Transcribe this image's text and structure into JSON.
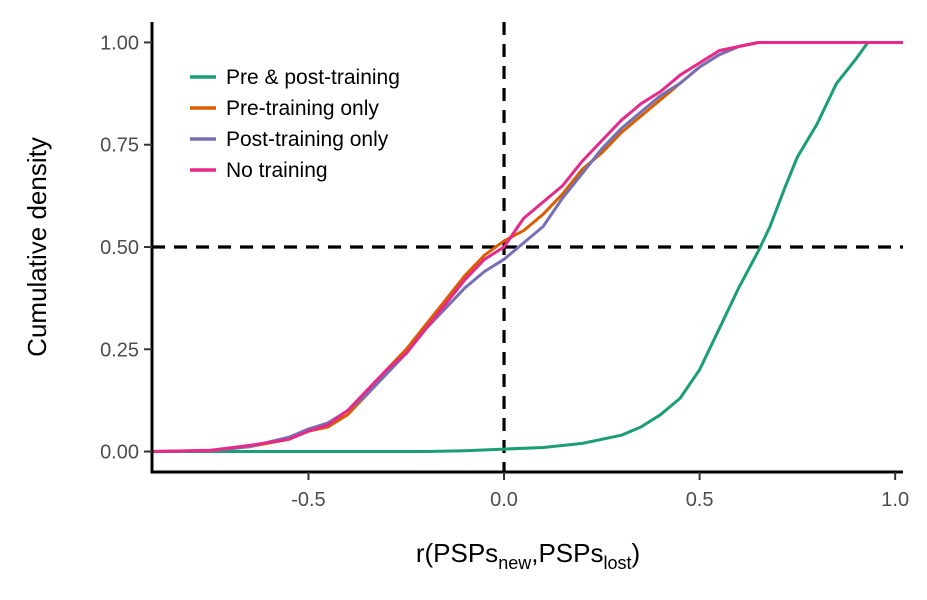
{
  "chart_data": {
    "type": "line",
    "title": "",
    "xlabel": {
      "main": "r(PSPs",
      "sub1": "new",
      "sep": ",PSPs",
      "sub2": "lost",
      "end": ")"
    },
    "ylabel": "Cumulative density",
    "xlim": [
      -0.9,
      1.02
    ],
    "ylim": [
      -0.05,
      1.05
    ],
    "x_ticks": [
      -0.5,
      0.0,
      0.5,
      1.0
    ],
    "x_tick_labels": [
      "-0.5",
      "0.0",
      "0.5",
      "1.0"
    ],
    "y_ticks": [
      0,
      0.25,
      0.5,
      0.75,
      1.0
    ],
    "y_tick_labels": [
      "0.00",
      "0.25",
      "0.50",
      "0.75",
      "1.00"
    ],
    "grid": false,
    "legend_position": "top-left",
    "reference_lines": {
      "vertical_x": 0.0,
      "horizontal_y": 0.5,
      "style": "dashed"
    },
    "series": [
      {
        "name": "Pre & post-training",
        "color": "#1b9e77",
        "points": [
          [
            -0.9,
            0
          ],
          [
            -0.5,
            0
          ],
          [
            -0.2,
            0
          ],
          [
            -0.1,
            0.002
          ],
          [
            0,
            0.006
          ],
          [
            0.1,
            0.01
          ],
          [
            0.2,
            0.02
          ],
          [
            0.25,
            0.03
          ],
          [
            0.3,
            0.04
          ],
          [
            0.35,
            0.06
          ],
          [
            0.4,
            0.09
          ],
          [
            0.45,
            0.13
          ],
          [
            0.5,
            0.2
          ],
          [
            0.55,
            0.3
          ],
          [
            0.6,
            0.4
          ],
          [
            0.65,
            0.49
          ],
          [
            0.68,
            0.55
          ],
          [
            0.72,
            0.65
          ],
          [
            0.75,
            0.72
          ],
          [
            0.8,
            0.8
          ],
          [
            0.85,
            0.9
          ],
          [
            0.9,
            0.96
          ],
          [
            0.93,
            1.0
          ],
          [
            1.02,
            1.0
          ]
        ]
      },
      {
        "name": "Pre-training only",
        "color": "#d95f02",
        "points": [
          [
            -0.9,
            0
          ],
          [
            -0.75,
            0.002
          ],
          [
            -0.65,
            0.012
          ],
          [
            -0.55,
            0.03
          ],
          [
            -0.5,
            0.05
          ],
          [
            -0.45,
            0.06
          ],
          [
            -0.4,
            0.09
          ],
          [
            -0.35,
            0.14
          ],
          [
            -0.3,
            0.2
          ],
          [
            -0.25,
            0.25
          ],
          [
            -0.2,
            0.31
          ],
          [
            -0.15,
            0.37
          ],
          [
            -0.1,
            0.43
          ],
          [
            -0.05,
            0.48
          ],
          [
            0,
            0.515
          ],
          [
            0.05,
            0.54
          ],
          [
            0.1,
            0.58
          ],
          [
            0.15,
            0.63
          ],
          [
            0.2,
            0.69
          ],
          [
            0.25,
            0.73
          ],
          [
            0.3,
            0.78
          ],
          [
            0.35,
            0.82
          ],
          [
            0.4,
            0.86
          ],
          [
            0.45,
            0.9
          ],
          [
            0.5,
            0.94
          ],
          [
            0.55,
            0.97
          ],
          [
            0.6,
            0.99
          ],
          [
            0.65,
            1.0
          ],
          [
            1.02,
            1.0
          ]
        ]
      },
      {
        "name": "Post-training only",
        "color": "#7570b3",
        "points": [
          [
            -0.9,
            0
          ],
          [
            -0.75,
            0.002
          ],
          [
            -0.65,
            0.012
          ],
          [
            -0.55,
            0.035
          ],
          [
            -0.5,
            0.055
          ],
          [
            -0.45,
            0.07
          ],
          [
            -0.4,
            0.1
          ],
          [
            -0.35,
            0.14
          ],
          [
            -0.3,
            0.19
          ],
          [
            -0.25,
            0.24
          ],
          [
            -0.2,
            0.3
          ],
          [
            -0.15,
            0.35
          ],
          [
            -0.1,
            0.4
          ],
          [
            -0.05,
            0.44
          ],
          [
            0,
            0.47
          ],
          [
            0.05,
            0.51
          ],
          [
            0.1,
            0.55
          ],
          [
            0.15,
            0.62
          ],
          [
            0.2,
            0.68
          ],
          [
            0.25,
            0.74
          ],
          [
            0.3,
            0.79
          ],
          [
            0.35,
            0.83
          ],
          [
            0.4,
            0.87
          ],
          [
            0.45,
            0.9
          ],
          [
            0.5,
            0.94
          ],
          [
            0.55,
            0.97
          ],
          [
            0.6,
            0.99
          ],
          [
            0.65,
            1.0
          ],
          [
            1.02,
            1.0
          ]
        ]
      },
      {
        "name": "No training",
        "color": "#e7298a",
        "points": [
          [
            -0.9,
            0
          ],
          [
            -0.75,
            0.003
          ],
          [
            -0.65,
            0.015
          ],
          [
            -0.55,
            0.03
          ],
          [
            -0.5,
            0.05
          ],
          [
            -0.45,
            0.065
          ],
          [
            -0.4,
            0.1
          ],
          [
            -0.35,
            0.15
          ],
          [
            -0.3,
            0.2
          ],
          [
            -0.25,
            0.24
          ],
          [
            -0.2,
            0.3
          ],
          [
            -0.15,
            0.36
          ],
          [
            -0.1,
            0.42
          ],
          [
            -0.05,
            0.47
          ],
          [
            0,
            0.5
          ],
          [
            0.05,
            0.57
          ],
          [
            0.1,
            0.61
          ],
          [
            0.15,
            0.65
          ],
          [
            0.2,
            0.71
          ],
          [
            0.25,
            0.76
          ],
          [
            0.3,
            0.81
          ],
          [
            0.35,
            0.85
          ],
          [
            0.4,
            0.88
          ],
          [
            0.45,
            0.92
          ],
          [
            0.5,
            0.95
          ],
          [
            0.55,
            0.98
          ],
          [
            0.6,
            0.99
          ],
          [
            0.65,
            1.0
          ],
          [
            1.02,
            1.0
          ]
        ]
      }
    ]
  }
}
